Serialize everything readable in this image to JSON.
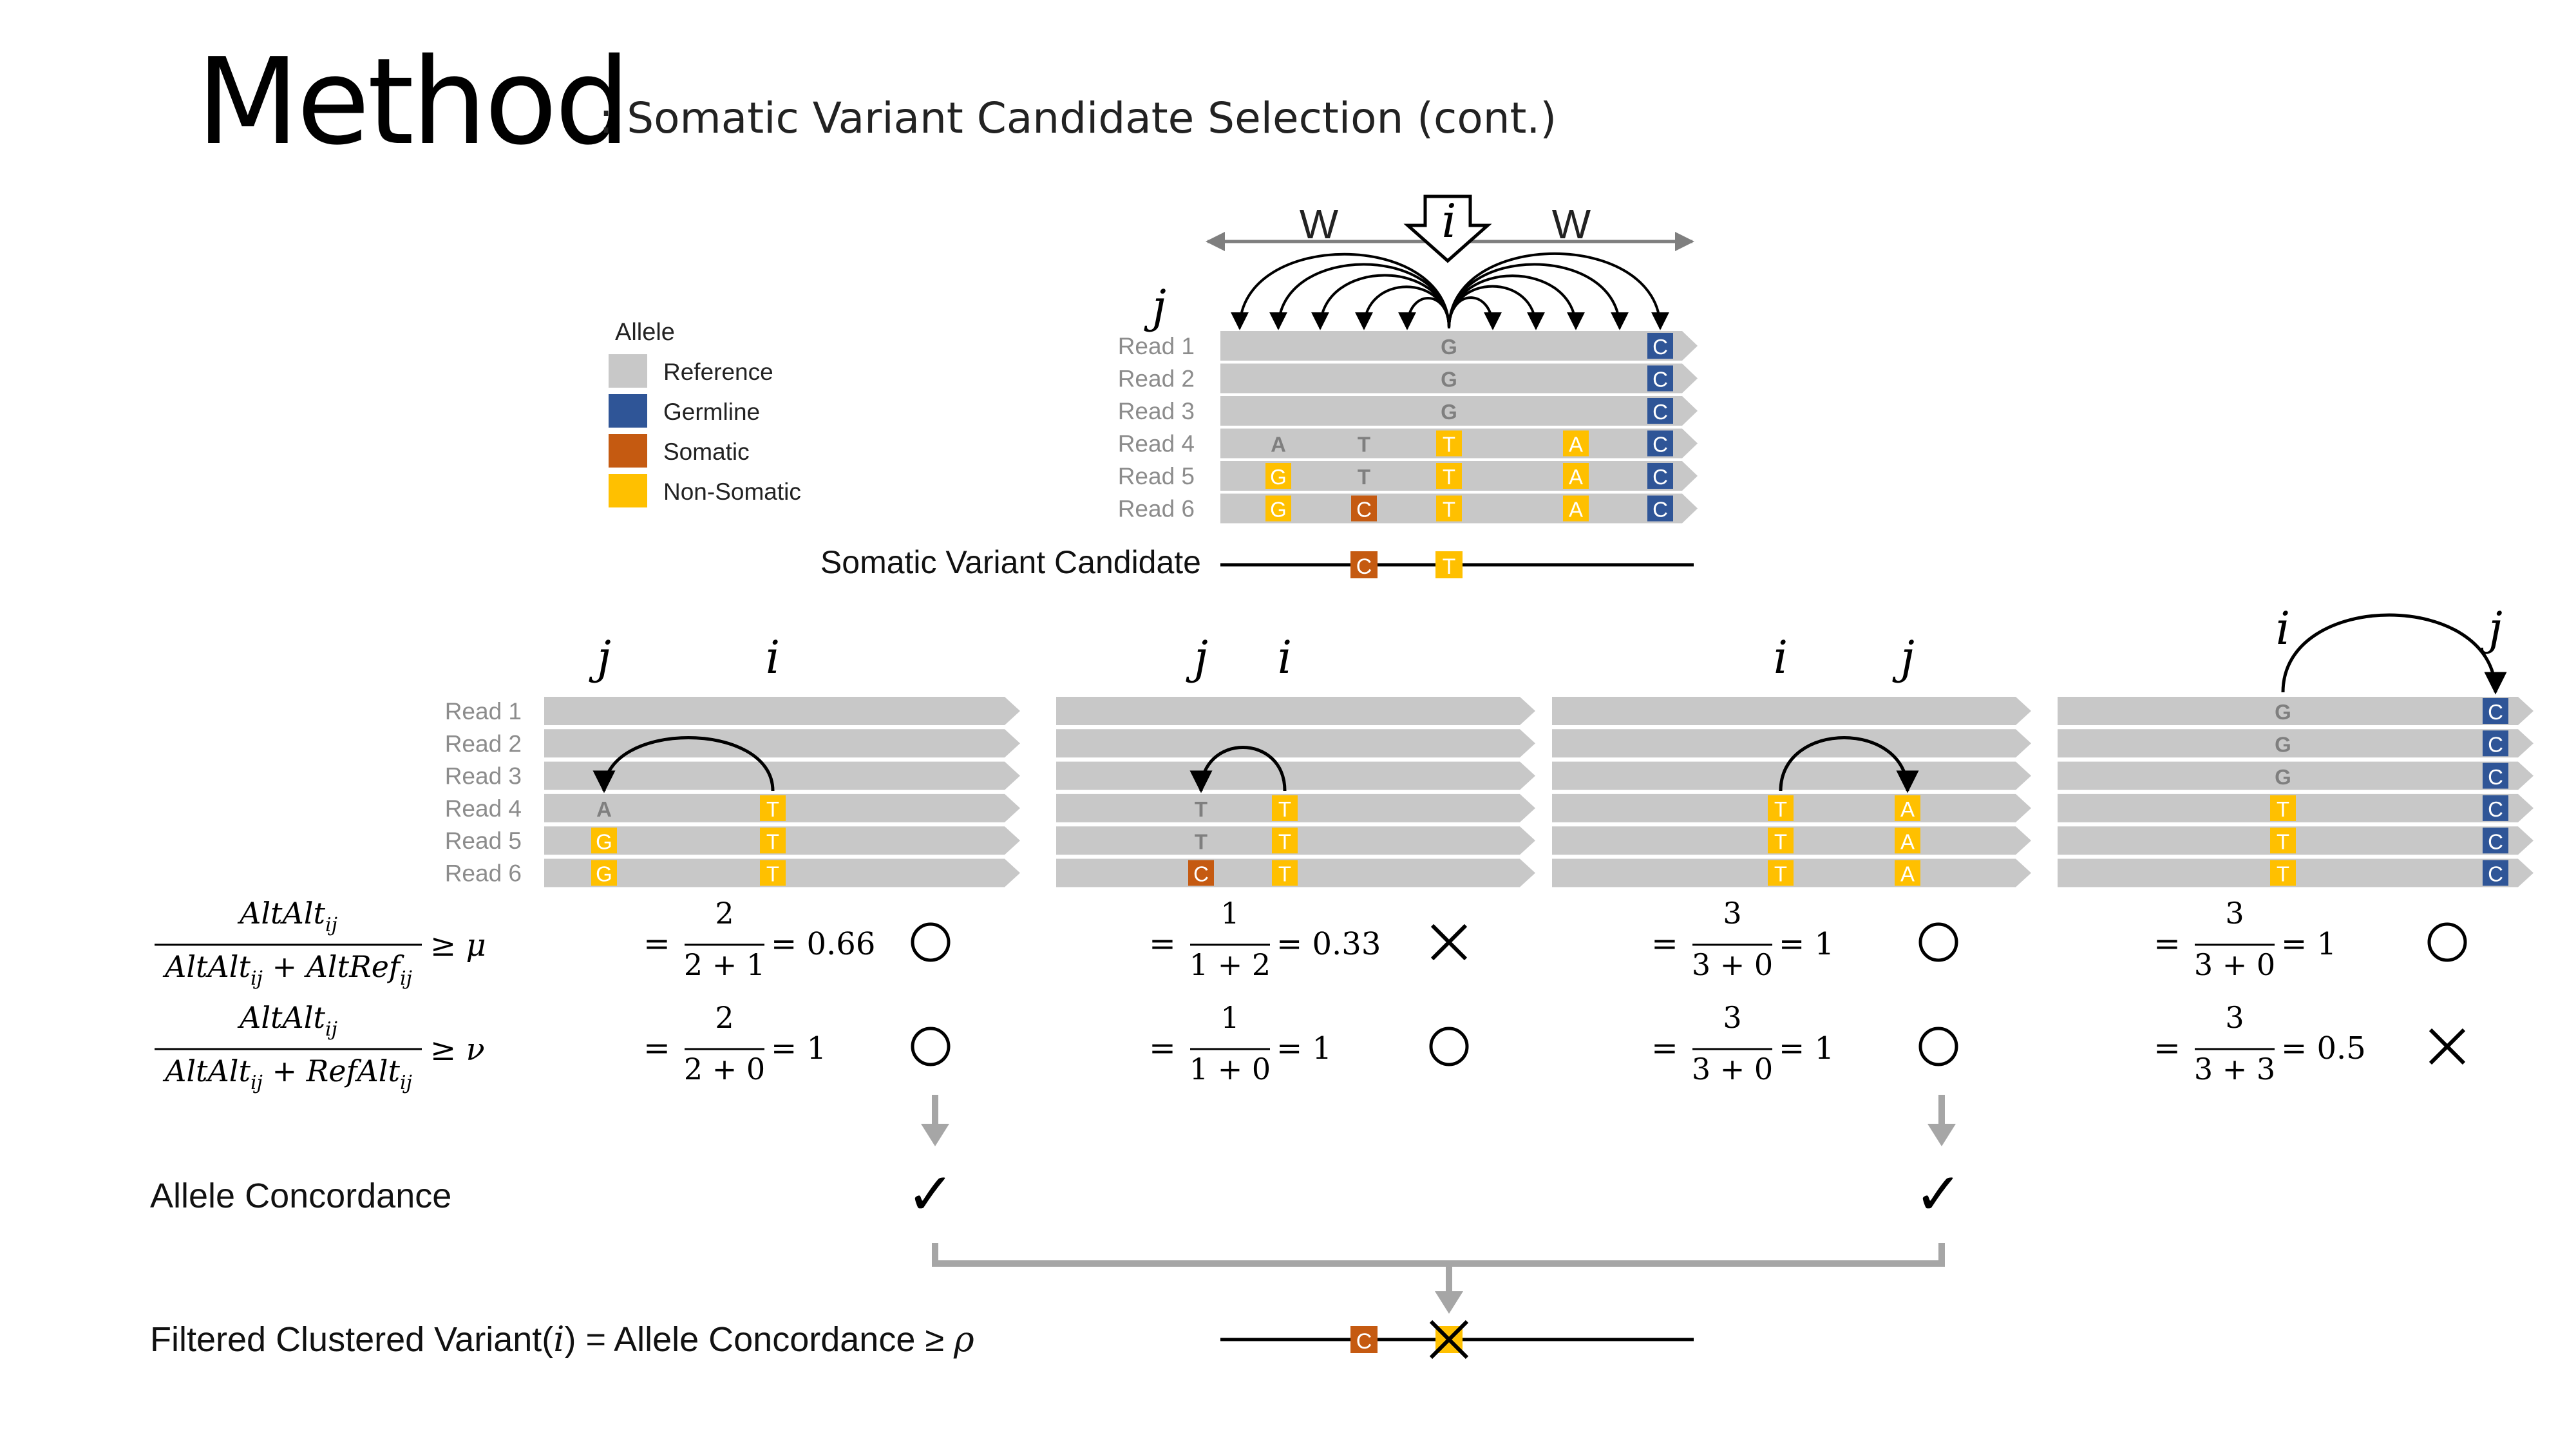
{
  "title": {
    "main": "Method",
    "sub": ": Somatic Variant Candidate Selection (cont.)"
  },
  "legend": {
    "title": "Allele",
    "items": [
      {
        "label": "Reference",
        "color": "#c8c8c8"
      },
      {
        "label": "Germline",
        "color": "#2f5597"
      },
      {
        "label": "Somatic",
        "color": "#c55a11"
      },
      {
        "label": "Non-Somatic",
        "color": "#ffc000"
      }
    ]
  },
  "reads": [
    "Read 1",
    "Read 2",
    "Read 3",
    "Read 4",
    "Read 5",
    "Read 6"
  ],
  "window": {
    "left": "W",
    "right": "W",
    "center": "i",
    "j": "j"
  },
  "top_panel": {
    "rows": [
      [
        {
          "ch": "G",
          "type": "ref"
        },
        {
          "ch": "C",
          "type": "germline"
        }
      ],
      [
        {
          "ch": "G",
          "type": "ref"
        },
        {
          "ch": "C",
          "type": "germline"
        }
      ],
      [
        {
          "ch": "G",
          "type": "ref"
        },
        {
          "ch": "C",
          "type": "germline"
        }
      ],
      [
        {
          "ch": "A",
          "type": "ref"
        },
        {
          "ch": "T",
          "type": "ref"
        },
        {
          "ch": "T",
          "type": "nonsomatic"
        },
        {
          "ch": "A",
          "type": "nonsomatic"
        },
        {
          "ch": "C",
          "type": "germline"
        }
      ],
      [
        {
          "ch": "G",
          "type": "nonsomatic"
        },
        {
          "ch": "T",
          "type": "ref"
        },
        {
          "ch": "T",
          "type": "nonsomatic"
        },
        {
          "ch": "A",
          "type": "nonsomatic"
        },
        {
          "ch": "C",
          "type": "germline"
        }
      ],
      [
        {
          "ch": "G",
          "type": "nonsomatic"
        },
        {
          "ch": "C",
          "type": "somatic"
        },
        {
          "ch": "T",
          "type": "nonsomatic"
        },
        {
          "ch": "A",
          "type": "nonsomatic"
        },
        {
          "ch": "C",
          "type": "germline"
        }
      ]
    ]
  },
  "candidate": {
    "label": "Somatic Variant Candidate",
    "alleles": [
      {
        "ch": "C",
        "type": "somatic"
      },
      {
        "ch": "T",
        "type": "nonsomatic"
      }
    ]
  },
  "panels": [
    {
      "i_label": "i",
      "j_label": "j",
      "col_j": [
        {
          "ch": "",
          "type": "none"
        },
        {
          "ch": "",
          "type": "none"
        },
        {
          "ch": "",
          "type": "none"
        },
        {
          "ch": "A",
          "type": "ref"
        },
        {
          "ch": "G",
          "type": "nonsomatic"
        },
        {
          "ch": "G",
          "type": "nonsomatic"
        }
      ],
      "col_i": [
        {
          "ch": "",
          "type": "none"
        },
        {
          "ch": "",
          "type": "none"
        },
        {
          "ch": "",
          "type": "none"
        },
        {
          "ch": "T",
          "type": "nonsomatic"
        },
        {
          "ch": "T",
          "type": "nonsomatic"
        },
        {
          "ch": "T",
          "type": "nonsomatic"
        }
      ],
      "f1": {
        "num": "2",
        "den": "2 + 1",
        "res": "= 0.66",
        "mark": "circle"
      },
      "f2": {
        "num": "2",
        "den": "2 + 0",
        "res": "= 1",
        "mark": "circle"
      },
      "concordance": "✓"
    },
    {
      "i_label": "i",
      "j_label": "j",
      "col_j": [
        {
          "ch": "",
          "type": "none"
        },
        {
          "ch": "",
          "type": "none"
        },
        {
          "ch": "",
          "type": "none"
        },
        {
          "ch": "T",
          "type": "ref"
        },
        {
          "ch": "T",
          "type": "ref"
        },
        {
          "ch": "C",
          "type": "somatic"
        }
      ],
      "col_i": [
        {
          "ch": "",
          "type": "none"
        },
        {
          "ch": "",
          "type": "none"
        },
        {
          "ch": "",
          "type": "none"
        },
        {
          "ch": "T",
          "type": "nonsomatic"
        },
        {
          "ch": "T",
          "type": "nonsomatic"
        },
        {
          "ch": "T",
          "type": "nonsomatic"
        }
      ],
      "f1": {
        "num": "1",
        "den": "1 + 2",
        "res": "= 0.33",
        "mark": "cross"
      },
      "f2": {
        "num": "1",
        "den": "1 + 0",
        "res": "= 1",
        "mark": "circle"
      },
      "concordance": ""
    },
    {
      "i_label": "i",
      "j_label": "j",
      "col_i": [
        {
          "ch": "",
          "type": "none"
        },
        {
          "ch": "",
          "type": "none"
        },
        {
          "ch": "",
          "type": "none"
        },
        {
          "ch": "T",
          "type": "nonsomatic"
        },
        {
          "ch": "T",
          "type": "nonsomatic"
        },
        {
          "ch": "T",
          "type": "nonsomatic"
        }
      ],
      "col_j": [
        {
          "ch": "",
          "type": "none"
        },
        {
          "ch": "",
          "type": "none"
        },
        {
          "ch": "",
          "type": "none"
        },
        {
          "ch": "A",
          "type": "nonsomatic"
        },
        {
          "ch": "A",
          "type": "nonsomatic"
        },
        {
          "ch": "A",
          "type": "nonsomatic"
        }
      ],
      "f1": {
        "num": "3",
        "den": "3 + 0",
        "res": "= 1",
        "mark": "circle"
      },
      "f2": {
        "num": "3",
        "den": "3 + 0",
        "res": "= 1",
        "mark": "circle"
      },
      "concordance": "✓"
    },
    {
      "i_label": "i",
      "j_label": "j",
      "col_i": [
        {
          "ch": "G",
          "type": "ref"
        },
        {
          "ch": "G",
          "type": "ref"
        },
        {
          "ch": "G",
          "type": "ref"
        },
        {
          "ch": "T",
          "type": "nonsomatic"
        },
        {
          "ch": "T",
          "type": "nonsomatic"
        },
        {
          "ch": "T",
          "type": "nonsomatic"
        }
      ],
      "col_j": [
        {
          "ch": "C",
          "type": "germline"
        },
        {
          "ch": "C",
          "type": "germline"
        },
        {
          "ch": "C",
          "type": "germline"
        },
        {
          "ch": "C",
          "type": "germline"
        },
        {
          "ch": "C",
          "type": "germline"
        },
        {
          "ch": "C",
          "type": "germline"
        }
      ],
      "f1": {
        "num": "3",
        "den": "3 + 0",
        "res": "= 1",
        "mark": "circle"
      },
      "f2": {
        "num": "3",
        "den": "3 + 3",
        "res": "= 0.5",
        "mark": "cross"
      },
      "concordance": ""
    }
  ],
  "formulas": {
    "f1": {
      "num": "AltAlt",
      "den_a": "AltAlt",
      "den_plus": " + ",
      "den_b": "AltRef",
      "sub": "ij",
      "rel": "≥ μ"
    },
    "f2": {
      "num": "AltAlt",
      "den_a": "AltAlt",
      "den_plus": " + ",
      "den_b": "RefAlt",
      "sub": "ij",
      "rel": "≥ ν"
    },
    "eq": "="
  },
  "allele_concordance_label": "Allele Concordance",
  "filtered_label": {
    "a": "Filtered Clustered Variant(",
    "var": "i",
    "b": ") = Allele Concordance ≥ ",
    "rho": "ρ"
  },
  "result": {
    "alleles": [
      {
        "ch": "C",
        "type": "somatic"
      },
      {
        "ch": "",
        "type": "nonsomatic"
      }
    ]
  },
  "colors": {
    "ref": "#c8c8c8",
    "germline": "#2f5597",
    "somatic": "#c55a11",
    "nonsomatic": "#ffc000",
    "read_label": "#8c8c8c",
    "arrow_gray": "#a6a6a6",
    "ref_text": "#7f7f7f"
  }
}
